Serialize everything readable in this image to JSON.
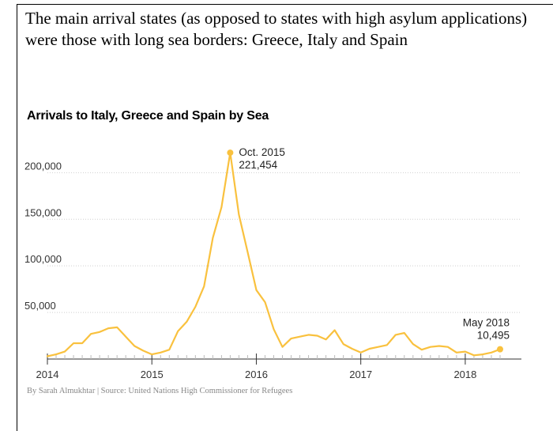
{
  "intro_text": "The main arrival states (as opposed to states with high asylum applications) were those with long sea borders: Greece, Italy and Spain",
  "credit": "By Sarah Almukhtar | Source: United Nations High Commissioner for Refugees",
  "colors": {
    "line": "#f9c13e",
    "grid": "#cfcfcf",
    "axis": "#333333"
  },
  "chart_data": {
    "type": "line",
    "title": "Arrivals to Italy, Greece and Spain by Sea",
    "xlabel": "",
    "ylabel": "",
    "ylim": [
      0,
      230000
    ],
    "yticks": [
      {
        "value": 50000,
        "label": "50,000"
      },
      {
        "value": 100000,
        "label": "100,000"
      },
      {
        "value": 150000,
        "label": "150,000"
      },
      {
        "value": 200000,
        "label": "200,000"
      }
    ],
    "xticks": [
      {
        "value": "2014-01",
        "label": "2014"
      },
      {
        "value": "2015-01",
        "label": "2015"
      },
      {
        "value": "2016-01",
        "label": "2016"
      },
      {
        "value": "2017-01",
        "label": "2017"
      },
      {
        "value": "2018-01",
        "label": "2018"
      }
    ],
    "grid": true,
    "series": [
      {
        "x": [
          "2014-01",
          "2014-02",
          "2014-03",
          "2014-04",
          "2014-05",
          "2014-06",
          "2014-07",
          "2014-08",
          "2014-09",
          "2014-10",
          "2014-11",
          "2014-12",
          "2015-01",
          "2015-02",
          "2015-03",
          "2015-04",
          "2015-05",
          "2015-06",
          "2015-07",
          "2015-08",
          "2015-09",
          "2015-10",
          "2015-11",
          "2015-12",
          "2016-01",
          "2016-02",
          "2016-03",
          "2016-04",
          "2016-05",
          "2016-06",
          "2016-07",
          "2016-08",
          "2016-09",
          "2016-10",
          "2016-11",
          "2016-12",
          "2017-01",
          "2017-02",
          "2017-03",
          "2017-04",
          "2017-05",
          "2017-06",
          "2017-07",
          "2017-08",
          "2017-09",
          "2017-10",
          "2017-11",
          "2017-12",
          "2018-01",
          "2018-02",
          "2018-03",
          "2018-04",
          "2018-05"
        ],
        "values": [
          3000,
          5000,
          8000,
          17000,
          17000,
          27000,
          29000,
          33000,
          34000,
          24000,
          14000,
          9000,
          5000,
          7000,
          10000,
          30000,
          40000,
          56000,
          78000,
          130000,
          163000,
          221454,
          155000,
          115000,
          74000,
          61000,
          32000,
          13000,
          22000,
          24000,
          26000,
          25000,
          21000,
          31000,
          16000,
          11000,
          7000,
          11000,
          13000,
          15000,
          26000,
          28000,
          16000,
          10000,
          13000,
          14000,
          13000,
          7000,
          8000,
          4000,
          5000,
          7000,
          10495
        ]
      }
    ],
    "annotations": [
      {
        "x": "2015-10",
        "y": 221454,
        "line1": "Oct. 2015",
        "line2": "221,454"
      },
      {
        "x": "2018-05",
        "y": 10495,
        "line1": "May 2018",
        "line2": "10,495"
      }
    ]
  }
}
